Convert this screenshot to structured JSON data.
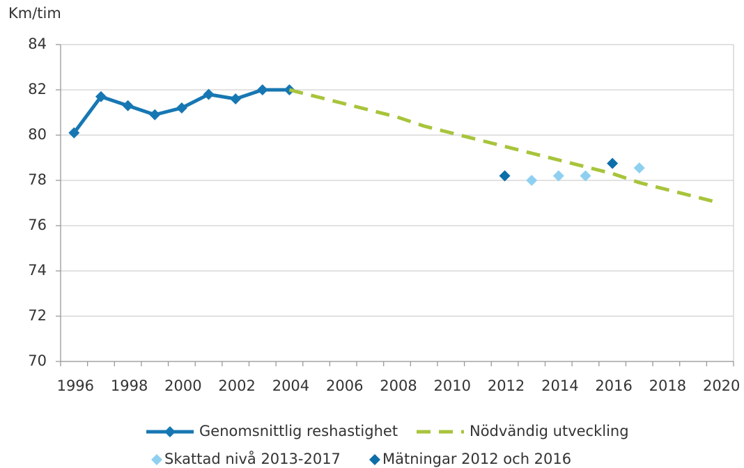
{
  "chart_data": {
    "type": "line",
    "y_axis_label": "Km/tim",
    "categories": [
      "1996",
      null,
      "1998",
      null,
      "2000",
      null,
      "2002",
      null,
      "2004",
      null,
      "2006",
      null,
      "2008",
      null,
      "2010",
      null,
      "2012",
      null,
      "2014",
      null,
      "2016",
      null,
      "2018",
      null,
      "2020"
    ],
    "ylim": [
      70,
      84
    ],
    "yticks": [
      70,
      72,
      74,
      76,
      78,
      80,
      82,
      84
    ],
    "grid": true,
    "legend": "bottom",
    "series": [
      {
        "name": "Genomsnittlig reshastighet",
        "color": "#1777b3",
        "line": "solid",
        "marker": "diamond",
        "values": [
          80.1,
          81.7,
          81.3,
          80.9,
          81.2,
          81.8,
          81.6,
          82.0,
          82.0,
          null,
          null,
          null,
          null,
          null,
          null,
          null,
          null,
          null,
          null,
          null,
          null,
          null,
          null,
          null,
          null
        ]
      },
      {
        "name": "Nödvändig utveckling",
        "color": "#a8c43c",
        "line": "dashed",
        "marker": null,
        "values": [
          null,
          null,
          null,
          null,
          null,
          null,
          null,
          null,
          82.0,
          81.7,
          81.4,
          81.1,
          80.8,
          80.4,
          80.1,
          79.8,
          79.5,
          79.2,
          78.9,
          78.6,
          78.3,
          77.9,
          77.6,
          77.3,
          77.0
        ]
      },
      {
        "name": "Skattad nivå 2013-2017",
        "color": "#8fd0f0",
        "line": null,
        "marker": "diamond",
        "values": [
          null,
          null,
          null,
          null,
          null,
          null,
          null,
          null,
          null,
          null,
          null,
          null,
          null,
          null,
          null,
          null,
          null,
          78.0,
          78.2,
          78.2,
          null,
          78.55,
          null,
          null,
          null
        ]
      },
      {
        "name": "Mätningar 2012 och 2016",
        "color": "#0d6fa9",
        "line": null,
        "marker": "diamond",
        "values": [
          null,
          null,
          null,
          null,
          null,
          null,
          null,
          null,
          null,
          null,
          null,
          null,
          null,
          null,
          null,
          null,
          78.2,
          null,
          null,
          null,
          78.75,
          null,
          null,
          null,
          null
        ]
      }
    ]
  }
}
